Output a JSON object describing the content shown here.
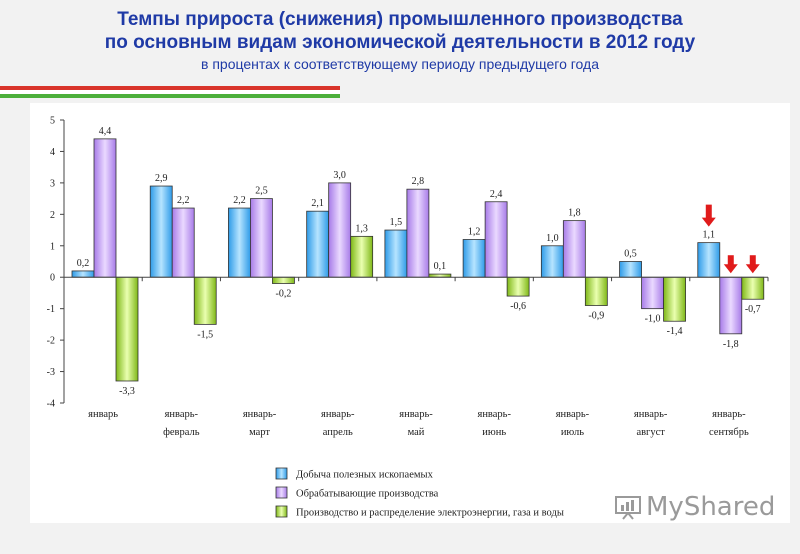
{
  "header": {
    "title_line1": "Темпы прироста (снижения) промышленного производства",
    "title_line2": "по основным видам экономической деятельности в 2012 году",
    "subtitle": "в процентах к соответствующему периоду предыдущего года"
  },
  "watermark": {
    "text": "MyShared"
  },
  "colors": {
    "title": "#1f3aa6",
    "series": [
      "#5bb8f5",
      "#c9a3f2",
      "#a9d33d"
    ],
    "stripes": [
      "#d9342b",
      "#ffffff",
      "#4caf3a"
    ],
    "arrow": "#e01b1b"
  },
  "chart_data": {
    "type": "bar",
    "categories": [
      [
        "январь"
      ],
      [
        "январь-",
        "февраль"
      ],
      [
        "январь-",
        "март"
      ],
      [
        "январь-",
        "апрель"
      ],
      [
        "январь-",
        "май"
      ],
      [
        "январь-",
        "июнь"
      ],
      [
        "январь-",
        "июль"
      ],
      [
        "январь-",
        "август"
      ],
      [
        "январь-",
        "сентябрь"
      ]
    ],
    "series": [
      {
        "name": "Добыча полезных ископаемых",
        "values": [
          0.2,
          2.9,
          2.2,
          2.1,
          1.5,
          1.2,
          1.0,
          0.5,
          1.1
        ],
        "labels": [
          "0,2",
          "2,9",
          "2,2",
          "2,1",
          "1,5",
          "1,2",
          "1,0",
          "0,5",
          "1,1"
        ]
      },
      {
        "name": "Обрабатывающие производства",
        "values": [
          4.4,
          2.2,
          2.5,
          3.0,
          2.8,
          2.4,
          1.8,
          -1.0,
          -1.8
        ],
        "labels": [
          "4,4",
          "2,2",
          "2,5",
          "3,0",
          "2,8",
          "2,4",
          "1,8",
          "-1,0",
          "-1,8"
        ]
      },
      {
        "name": "Производство и распределение электроэнергии, газа и воды",
        "values": [
          -3.3,
          -1.5,
          -0.2,
          1.3,
          0.1,
          -0.6,
          -0.9,
          -1.4,
          -0.7
        ],
        "labels": [
          "-3,3",
          "-1,5",
          "-0,2",
          "1,3",
          "0,1",
          "-0,6",
          "-0,9",
          "-1,4",
          "-0,7"
        ]
      }
    ],
    "ylim": [
      -4,
      5
    ],
    "yticks": [
      {
        "v": 5,
        "label": "5"
      },
      {
        "v": 4,
        "label": "4"
      },
      {
        "v": 3,
        "label": "3"
      },
      {
        "v": 2,
        "label": "2"
      },
      {
        "v": 1,
        "label": "1"
      },
      {
        "v": 0,
        "label": "0"
      },
      {
        "v": -1,
        "label": "-1"
      },
      {
        "v": -2,
        "label": "-2"
      },
      {
        "v": -3,
        "label": "-3"
      },
      {
        "v": -4,
        "label": "-4"
      }
    ],
    "grid": false,
    "legend_position": "bottom",
    "annotations": [
      {
        "type": "arrow-down",
        "category": 8,
        "series": 0
      },
      {
        "type": "arrow-down",
        "category": 8,
        "series": 1
      },
      {
        "type": "arrow-down",
        "category": 8,
        "series": 2
      }
    ]
  }
}
